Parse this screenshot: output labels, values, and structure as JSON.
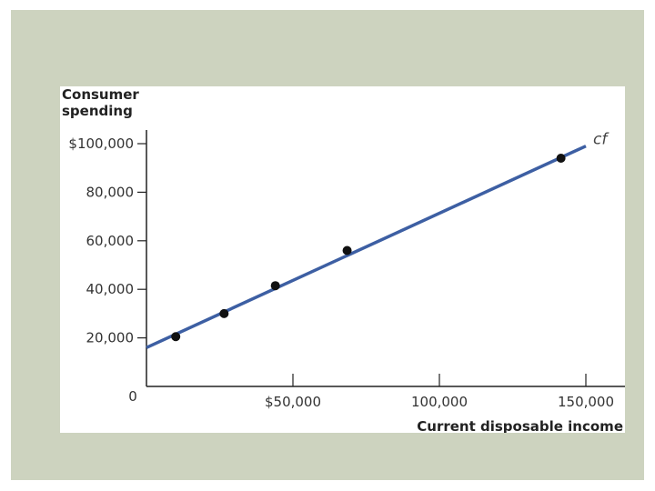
{
  "chart_data": {
    "type": "scatter",
    "title": "",
    "ylabel_lines": [
      "Consumer",
      "spending"
    ],
    "xlabel": "Current disposable income",
    "x_ticks": [
      {
        "value": 0,
        "label": "0"
      },
      {
        "value": 50000,
        "label": "$50,000"
      },
      {
        "value": 100000,
        "label": "100,000"
      },
      {
        "value": 150000,
        "label": "150,000"
      }
    ],
    "y_ticks": [
      {
        "value": 20000,
        "label": "20,000"
      },
      {
        "value": 40000,
        "label": "40,000"
      },
      {
        "value": 60000,
        "label": "60,000"
      },
      {
        "value": 80000,
        "label": "80,000"
      },
      {
        "value": 100000,
        "label": "$100,000"
      }
    ],
    "xlim": [
      0,
      163000
    ],
    "ylim": [
      0,
      105000
    ],
    "points": [
      {
        "x": 10000,
        "y": 20500
      },
      {
        "x": 26500,
        "y": 30000
      },
      {
        "x": 44000,
        "y": 41500
      },
      {
        "x": 68500,
        "y": 56000
      },
      {
        "x": 141500,
        "y": 94000
      }
    ],
    "fit_line": {
      "name": "cf",
      "x1": 0,
      "y1": 16000,
      "x2": 150000,
      "y2": 99000
    },
    "colors": {
      "line": "#3d5fa3",
      "points": "#111111",
      "axis": "#222222",
      "background": "#cdd3bf"
    }
  }
}
